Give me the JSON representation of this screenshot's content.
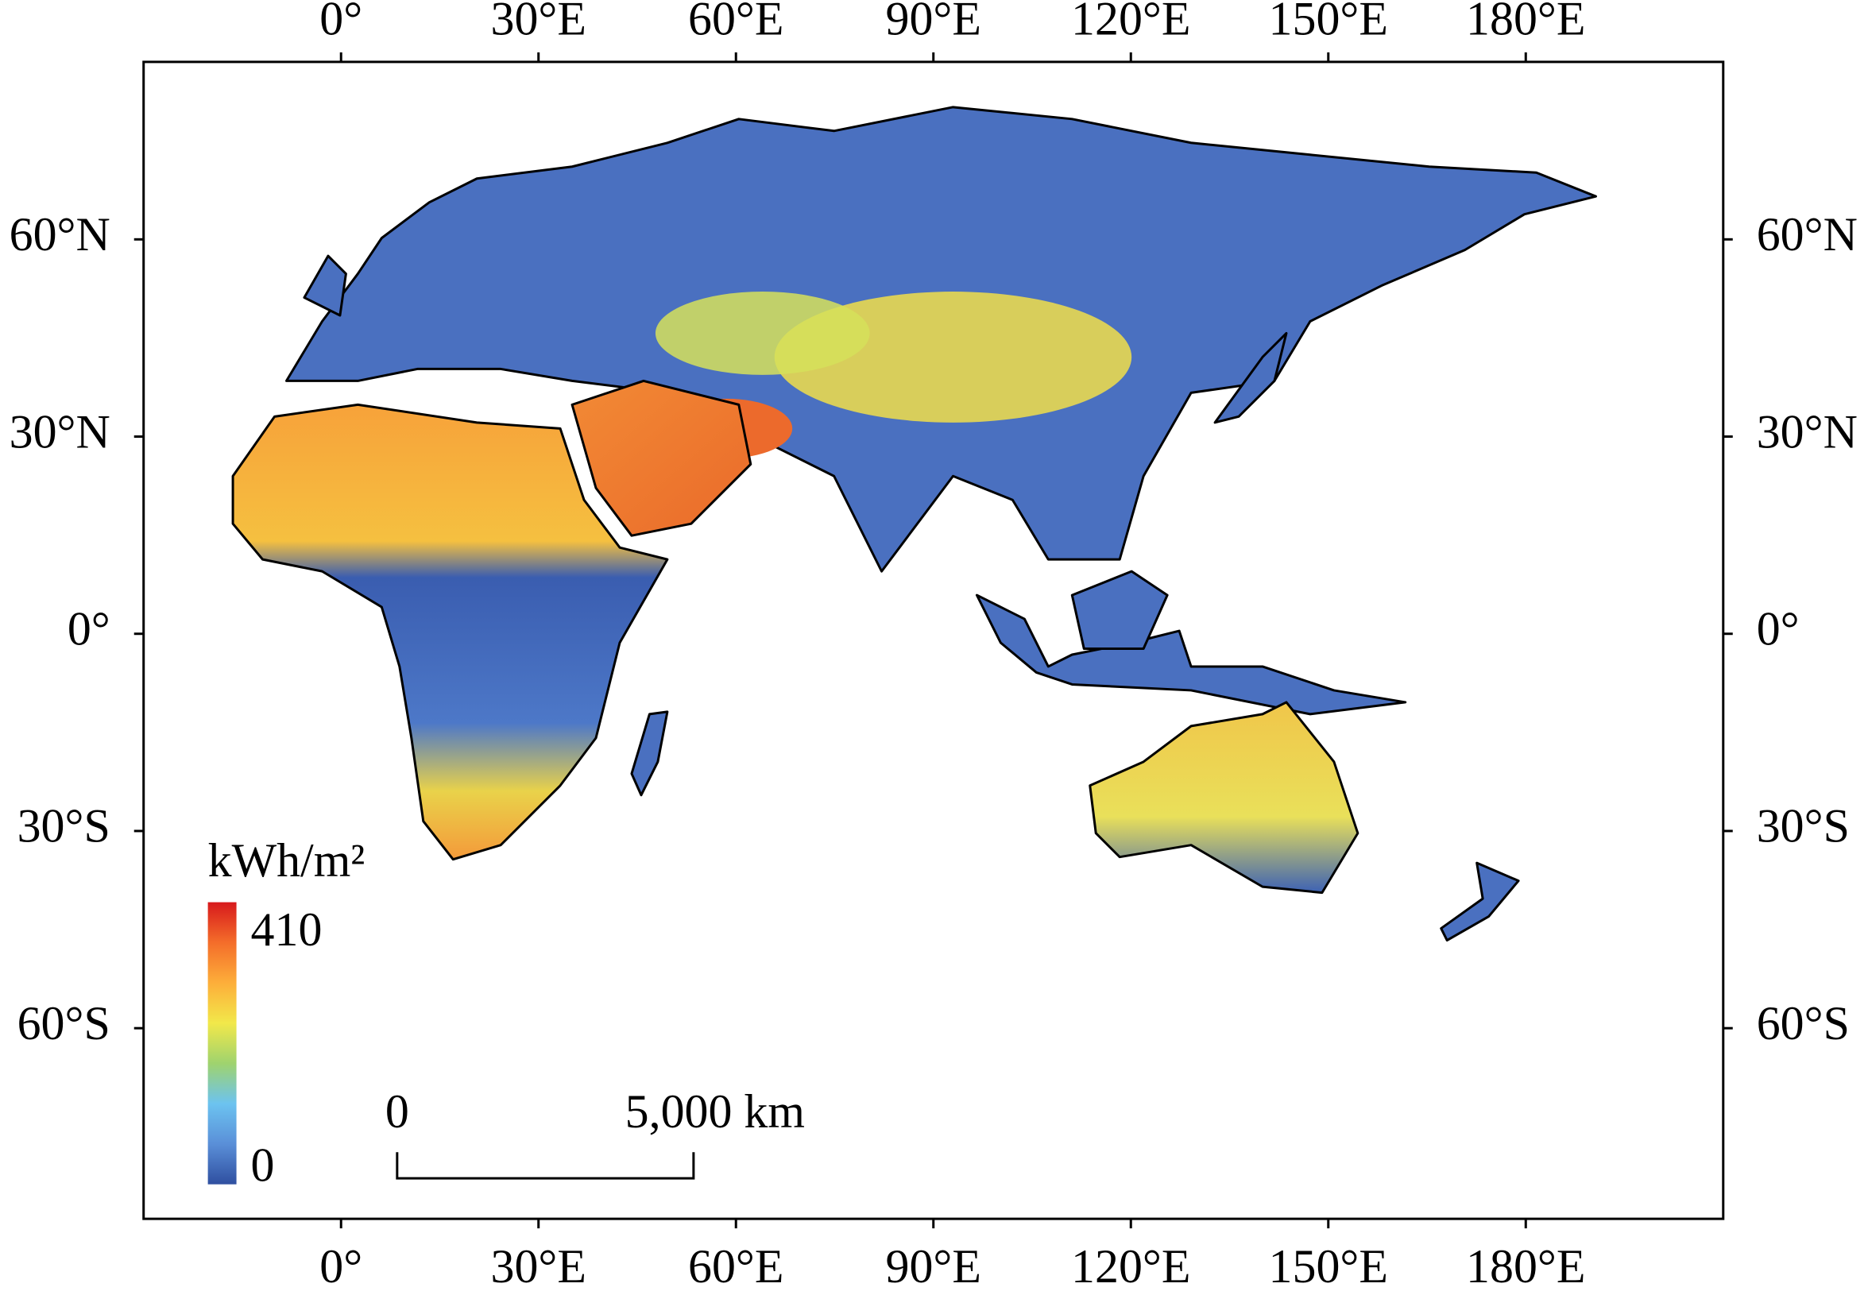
{
  "map": {
    "xlim": [
      -30,
      210
    ],
    "ylim": [
      -89,
      87
    ],
    "lon_ticks": [
      {
        "value": 0,
        "label": "0°"
      },
      {
        "value": 30,
        "label": "30°E"
      },
      {
        "value": 60,
        "label": "60°E"
      },
      {
        "value": 90,
        "label": "90°E"
      },
      {
        "value": 120,
        "label": "120°E"
      },
      {
        "value": 150,
        "label": "150°E"
      },
      {
        "value": 180,
        "label": "180°E"
      }
    ],
    "lat_ticks": [
      {
        "value": 60,
        "label": "60°N"
      },
      {
        "value": 30,
        "label": "30°N"
      },
      {
        "value": 0,
        "label": "0°"
      },
      {
        "value": -30,
        "label": "30°S"
      },
      {
        "value": -60,
        "label": "60°S"
      }
    ],
    "legend": {
      "title": "kWh/m²",
      "max": 410,
      "min": 0,
      "colors": [
        "#d7191c",
        "#f46d2a",
        "#fdae3a",
        "#f2e84a",
        "#9fd36e",
        "#6cc3f0",
        "#5a8fd8",
        "#2f4fa0"
      ]
    },
    "scale_bar": {
      "start_label": "0",
      "end_label": "5,000 km"
    }
  }
}
